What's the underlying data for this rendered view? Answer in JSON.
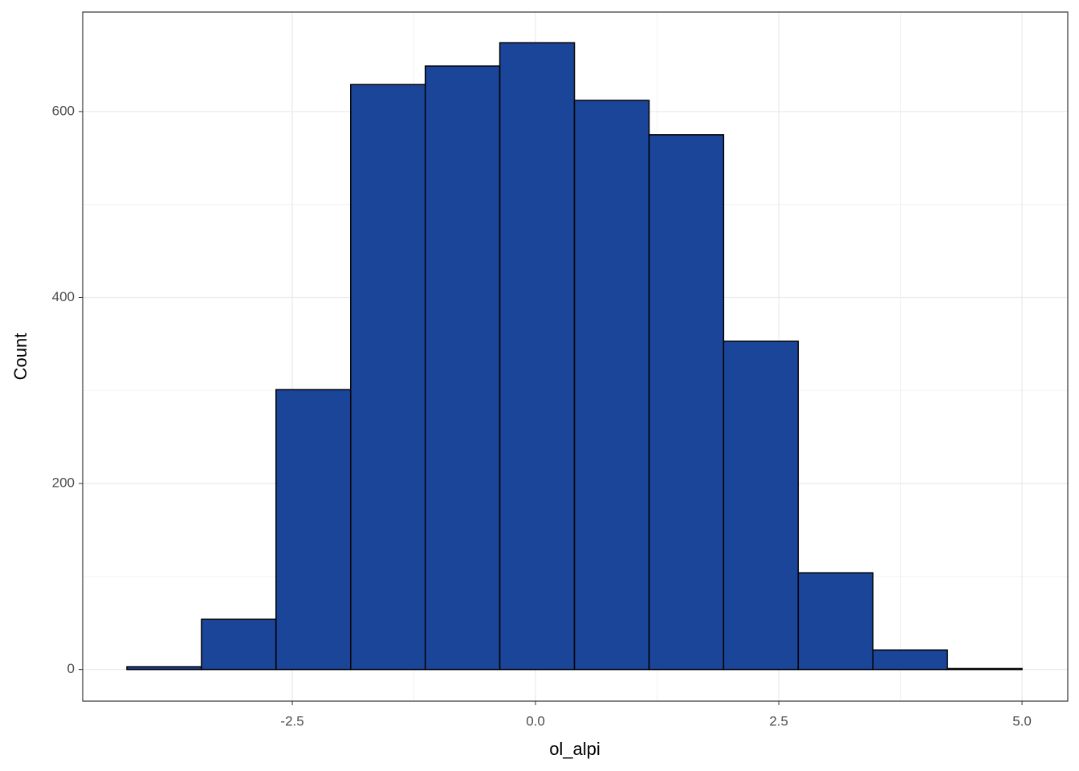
{
  "chart_data": {
    "type": "histogram",
    "x_label": "ol_alpi",
    "y_label": "Count",
    "bins": [
      -4.2,
      -3.433,
      -2.667,
      -1.9,
      -1.133,
      -0.367,
      0.4,
      1.167,
      1.933,
      2.7,
      3.467,
      4.233,
      5.0
    ],
    "values": [
      3,
      54,
      301,
      629,
      649,
      674,
      612,
      575,
      353,
      104,
      21,
      1
    ],
    "color": "#1a4599",
    "xlim": [
      -4.654,
      5.47
    ],
    "xticks": [
      -2.5,
      {
        "value": 0,
        "label": "0.0"
      },
      2.5,
      {
        "value": 5,
        "label": "5.0"
      }
    ],
    "ylim": [
      -34,
      707
    ],
    "yticks": [
      0,
      200,
      400,
      600
    ],
    "grid": true
  }
}
